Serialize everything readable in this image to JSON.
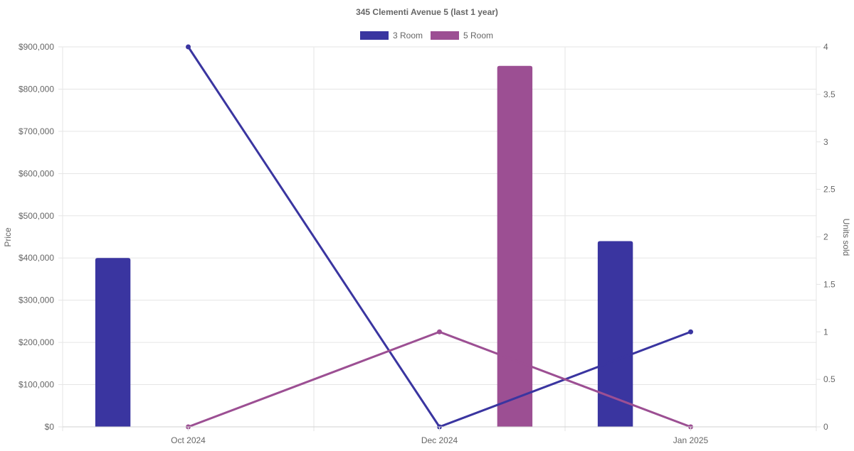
{
  "chart_data": {
    "type": "bar",
    "title": "345 Clementi Avenue 5 (last 1 year)",
    "categories": [
      "Oct 2024",
      "Dec 2024",
      "Jan 2025"
    ],
    "y_left": {
      "label": "Price",
      "lim": [
        0,
        900000
      ],
      "ticks": [
        0,
        100000,
        200000,
        300000,
        400000,
        500000,
        600000,
        700000,
        800000,
        900000
      ],
      "tick_labels": [
        "$0",
        "$100,000",
        "$200,000",
        "$300,000",
        "$400,000",
        "$500,000",
        "$600,000",
        "$700,000",
        "$800,000",
        "$900,000"
      ]
    },
    "y_right": {
      "label": "Units sold",
      "lim": [
        0,
        4
      ],
      "ticks": [
        0,
        0.5,
        1,
        1.5,
        2,
        2.5,
        3,
        3.5,
        4
      ],
      "tick_labels": [
        "0",
        "0.5",
        "1",
        "1.5",
        "2",
        "2.5",
        "3",
        "3.5",
        "4"
      ]
    },
    "grid": true,
    "legend_position": "top-center",
    "series": [
      {
        "name": "3 Room",
        "color": "#3a35a0",
        "price": [
          400000,
          null,
          440000
        ],
        "units": [
          4,
          0,
          1
        ]
      },
      {
        "name": "5 Room",
        "color": "#9c4f93",
        "price": [
          null,
          855000,
          null
        ],
        "units": [
          0,
          1,
          0
        ]
      }
    ]
  }
}
